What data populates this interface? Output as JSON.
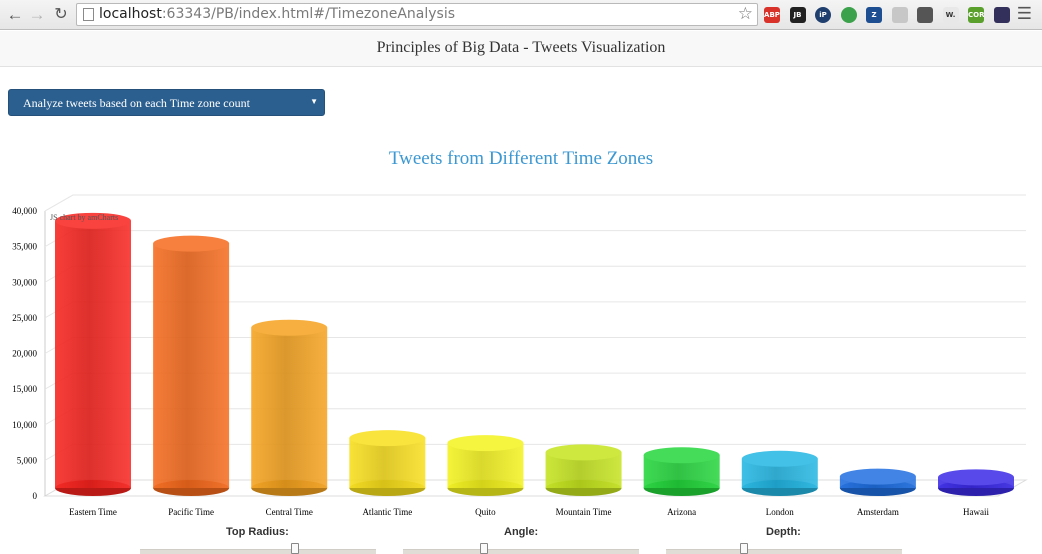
{
  "browser": {
    "url_host": "localhost",
    "url_rest": ":63343/PB/index.html#/TimezoneAnalysis",
    "extensions": [
      {
        "name": "adblock-icon",
        "label": "ABP",
        "color": "#d9322b"
      },
      {
        "name": "jetbrains-icon",
        "label": "JB",
        "color": "#222222"
      },
      {
        "name": "ip-icon",
        "label": "iP",
        "color": "#1f3f6e"
      },
      {
        "name": "pushbullet-icon",
        "label": "",
        "color": "#3ca14b"
      },
      {
        "name": "zotero-icon",
        "label": "Z",
        "color": "#1d4e91"
      },
      {
        "name": "feather-icon",
        "label": "",
        "color": "#c7c7c7"
      },
      {
        "name": "book-icon",
        "label": "",
        "color": "#555555"
      },
      {
        "name": "w-icon",
        "label": "W.",
        "color": "#e8e8e8"
      },
      {
        "name": "cors-icon",
        "label": "CORS",
        "color": "#5aa02c"
      },
      {
        "name": "astro-icon",
        "label": "",
        "color": "#33305c"
      }
    ]
  },
  "header": {
    "title": "Principles of Big Data - Tweets Visualization"
  },
  "select": {
    "value": "Analyze tweets based on each Time zone count"
  },
  "chart_data": {
    "type": "bar",
    "title": "Tweets from Different Time Zones",
    "credit": "JS chart by amCharts",
    "categories": [
      "Eastern Time",
      "Pacific Time",
      "Central Time",
      "Atlantic Time",
      "Quito",
      "Mountain Time",
      "Arizona",
      "London",
      "Amsterdam",
      "Hawaii"
    ],
    "values": [
      37500,
      34300,
      22500,
      7000,
      6300,
      5000,
      4600,
      4100,
      1600,
      1500
    ],
    "colors": [
      "#f8221d",
      "#f56a1c",
      "#f5a21d",
      "#f8de1b",
      "#f3f21d",
      "#c5e41e",
      "#23d63b",
      "#22b6e3",
      "#1f6ee0",
      "#3a2ae6"
    ],
    "ylim": [
      0,
      40000
    ],
    "yticks": [
      "0",
      "5,000",
      "10,000",
      "15,000",
      "20,000",
      "25,000",
      "30,000",
      "35,000",
      "40,000"
    ],
    "grid": true,
    "style": "3d-cylinder"
  },
  "controls": {
    "top_radius_label": "Top Radius:",
    "angle_label": "Angle:",
    "depth_label": "Depth:"
  }
}
